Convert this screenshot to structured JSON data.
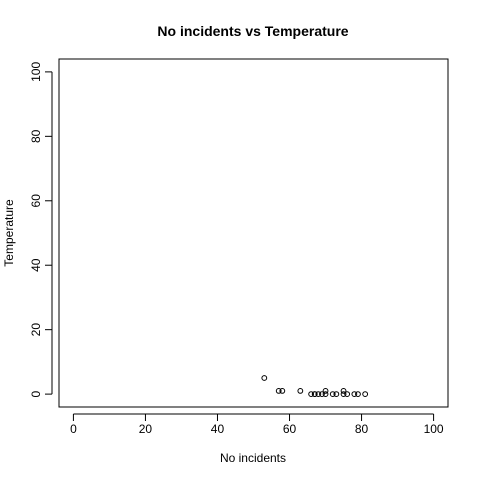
{
  "chart_data": {
    "type": "scatter",
    "title": "No incidents vs Temperature",
    "xlabel": "No incidents",
    "ylabel": "Temperature",
    "xlim": [
      -4,
      104
    ],
    "ylim": [
      -4,
      104
    ],
    "x_ticks": [
      0,
      20,
      40,
      60,
      80,
      100
    ],
    "y_ticks": [
      0,
      20,
      40,
      60,
      80,
      100
    ],
    "grid": false,
    "marker": "open-circle",
    "colors": {
      "points": "#000000",
      "axis": "#000000",
      "background": "#ffffff"
    },
    "series": [
      {
        "points": [
          [
            53,
            5
          ],
          [
            57,
            1
          ],
          [
            58,
            1
          ],
          [
            63,
            1
          ],
          [
            66,
            0
          ],
          [
            67,
            0
          ],
          [
            67,
            0
          ],
          [
            68,
            0
          ],
          [
            69,
            0
          ],
          [
            70,
            0
          ],
          [
            70,
            1
          ],
          [
            72,
            0
          ],
          [
            73,
            0
          ],
          [
            75,
            0
          ],
          [
            75,
            1
          ],
          [
            76,
            0
          ],
          [
            78,
            0
          ],
          [
            79,
            0
          ],
          [
            81,
            0
          ]
        ]
      }
    ]
  }
}
